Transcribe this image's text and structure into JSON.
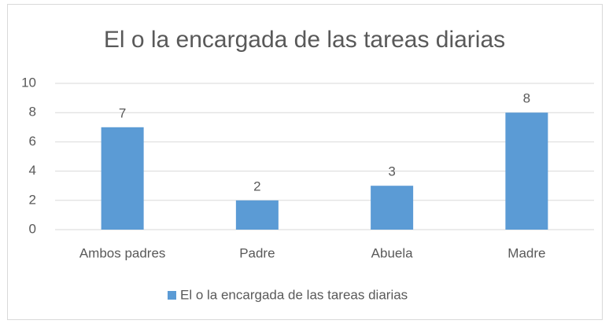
{
  "chart_data": {
    "type": "bar",
    "title": "El o la encargada de las tareas diarias",
    "categories": [
      "Ambos padres",
      "Padre",
      "Abuela",
      "Madre"
    ],
    "series": [
      {
        "name": "El o la encargada de las tareas diarias",
        "color": "#5b9bd5",
        "values": [
          7,
          2,
          3,
          8
        ]
      }
    ],
    "ylim": [
      0,
      10
    ],
    "yticks": [
      0,
      2,
      4,
      6,
      8,
      10
    ],
    "grid": true,
    "legend": "bottom",
    "data_labels": true
  }
}
